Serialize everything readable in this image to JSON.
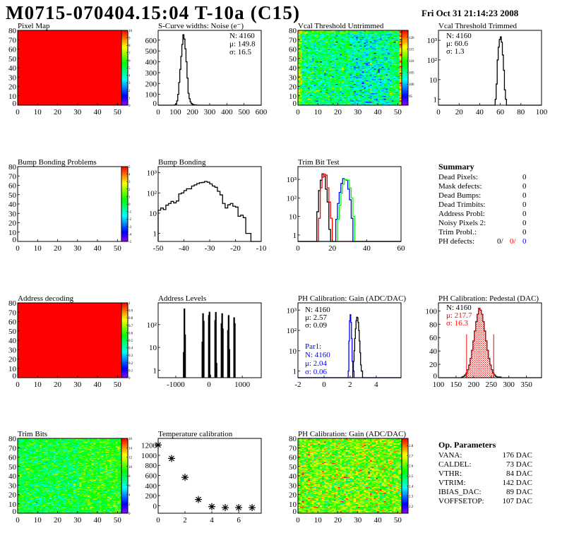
{
  "header": {
    "title": "M0715-070404.15:04 T-10a (C15)",
    "date": "Fri Oct 31 21:14:23 2008"
  },
  "summary": {
    "title": "Summary",
    "rows": [
      {
        "label": "Dead Pixels:",
        "value": "0"
      },
      {
        "label": "Mask defects:",
        "value": "0"
      },
      {
        "label": "Dead Bumps:",
        "value": "0"
      },
      {
        "label": "Dead Trimbits:",
        "value": "0"
      },
      {
        "label": "Address Probl:",
        "value": "0"
      },
      {
        "label": "Noisy Pixels 2:",
        "value": "0"
      },
      {
        "label": "Trim Probl.:",
        "value": "0"
      }
    ],
    "ph_defects": {
      "label": "PH defects:",
      "values": [
        {
          "text": "0/",
          "color": "#000000"
        },
        {
          "text": "0/",
          "color": "#ff0000"
        },
        {
          "text": "0",
          "color": "#0000ff"
        }
      ]
    }
  },
  "op_parameters": {
    "title": "Op. Parameters",
    "rows": [
      {
        "label": "VANA:",
        "value": "176 DAC"
      },
      {
        "label": "CALDEL:",
        "value": "73 DAC"
      },
      {
        "label": "VTHR:",
        "value": "84 DAC"
      },
      {
        "label": "VTRIM:",
        "value": "142 DAC"
      },
      {
        "label": "IBIAS_DAC:",
        "value": "89 DAC"
      },
      {
        "label": "VOFFSETOP:",
        "value": "107 DAC"
      }
    ]
  },
  "chart_data": [
    {
      "name": "pixel-map",
      "type": "heatmap",
      "title": "Pixel Map",
      "xlim": [
        0,
        52
      ],
      "ylim": [
        0,
        80
      ],
      "xticks": [
        0,
        10,
        20,
        30,
        40,
        50
      ],
      "yticks": [
        0,
        10,
        20,
        30,
        40,
        50,
        60,
        70,
        80
      ],
      "zlim": [
        0,
        10
      ],
      "colorbar_ticks": [
        0,
        1,
        2,
        3,
        4,
        5,
        6,
        7,
        8,
        9,
        10
      ],
      "uniform_value": 10
    },
    {
      "name": "s-curve-noise",
      "type": "histogram",
      "title": "S-Curve widths: Noise (e⁻)",
      "xlim": [
        0,
        600
      ],
      "ylim": [
        0,
        690
      ],
      "ylog": false,
      "xticks": [
        0,
        100,
        200,
        300,
        400,
        500,
        600
      ],
      "yticks": [
        0,
        100,
        200,
        300,
        400,
        500,
        600
      ],
      "stats": [
        {
          "text": "N: 4160",
          "color": "#000000"
        },
        {
          "text": "μ: 149.8",
          "color": "#000000"
        },
        {
          "text": "σ: 16.5",
          "color": "#000000"
        }
      ],
      "series": [
        {
          "color": "#000000",
          "bin_start": 90,
          "bin_width": 6,
          "values": [
            1,
            2,
            10,
            40,
            100,
            210,
            330,
            450,
            560,
            650,
            610,
            520,
            400,
            250,
            110,
            60,
            30,
            15,
            8,
            5,
            3,
            2,
            1,
            1
          ]
        }
      ]
    },
    {
      "name": "vcal-threshold-untrimmed",
      "type": "heatmap",
      "title": "Vcal Threshold Untrimmed",
      "xlim": [
        0,
        52
      ],
      "ylim": [
        0,
        80
      ],
      "xticks": [
        0,
        10,
        20,
        30,
        40,
        50
      ],
      "yticks": [
        0,
        10,
        20,
        30,
        40,
        50,
        60,
        70,
        80
      ],
      "zlim": [
        91,
        123
      ],
      "colorbar_ticks": [
        95,
        100,
        105,
        110,
        115,
        120
      ]
    },
    {
      "name": "vcal-threshold-trimmed",
      "type": "histogram",
      "title": "Vcal Threshold Trimmed",
      "xlim": [
        0,
        100
      ],
      "ylim": [
        0.5,
        3200
      ],
      "ylog": true,
      "xticks": [
        0,
        20,
        40,
        60,
        80,
        100
      ],
      "yticks": [
        1,
        10,
        100,
        1000
      ],
      "ytick_labels": [
        "1",
        "10",
        "10²",
        "10³"
      ],
      "stats": [
        {
          "text": "N: 4160",
          "color": "#000000"
        },
        {
          "text": "μ: 60.6",
          "color": "#000000"
        },
        {
          "text": "σ:  1.3",
          "color": "#000000"
        }
      ],
      "series": [
        {
          "color": "#000000",
          "bin_start": 55,
          "bin_width": 1,
          "values": [
            1,
            6,
            100,
            450,
            1100,
            1500,
            800,
            180,
            30,
            3,
            1
          ]
        }
      ]
    },
    {
      "name": "bump-bonding-problems",
      "type": "heatmap",
      "title": "Bump Bonding Problems",
      "xlim": [
        0,
        52
      ],
      "ylim": [
        0,
        80
      ],
      "xticks": [
        0,
        10,
        20,
        30,
        40,
        50
      ],
      "yticks": [
        0,
        10,
        20,
        30,
        40,
        50,
        60,
        70,
        80
      ],
      "zlim": [
        -5,
        5
      ],
      "colorbar_ticks": [
        -5,
        -4,
        -3,
        -2,
        -1,
        0,
        1,
        2,
        3,
        4,
        5
      ]
    },
    {
      "name": "bump-bonding",
      "type": "histogram",
      "title": "Bump Bonding",
      "xlim": [
        -50,
        -10
      ],
      "ylim": [
        0.4,
        2000
      ],
      "ylog": true,
      "xticks": [
        -50,
        -40,
        -30,
        -20,
        -10
      ],
      "yticks": [
        1,
        10,
        100,
        1000
      ],
      "ytick_labels": [
        "1",
        "10",
        "10²",
        "10³"
      ],
      "series": [
        {
          "color": "#000000",
          "bin_start": -50,
          "bin_width": 1,
          "values": [
            14,
            18,
            15,
            25,
            30,
            38,
            32,
            40,
            90,
            100,
            130,
            160,
            160,
            220,
            250,
            290,
            320,
            330,
            370,
            340,
            280,
            220,
            190,
            120,
            80,
            30,
            18,
            26,
            30,
            22,
            20,
            7,
            8,
            6,
            1,
            1
          ]
        }
      ]
    },
    {
      "name": "trim-bit-test",
      "type": "histogram",
      "title": "Trim Bit Test",
      "xlim": [
        0,
        60
      ],
      "ylim": [
        0.45,
        4900
      ],
      "ylog": true,
      "xticks": [
        0,
        20,
        40,
        60
      ],
      "yticks": [
        1,
        10,
        100,
        1000
      ],
      "ytick_labels": [
        "1",
        "10",
        "10²",
        "10³"
      ],
      "series": [
        {
          "color": "#000000",
          "bin_start": 11,
          "bin_width": 1,
          "values": [
            18,
            250,
            900,
            2000,
            1500,
            300,
            60,
            2
          ]
        },
        {
          "color": "#ff0000",
          "bin_start": 12,
          "bin_width": 1,
          "values": [
            8,
            350,
            1300,
            1900,
            1700,
            350,
            60,
            8
          ]
        },
        {
          "color": "#0000ff",
          "bin_start": 22,
          "bin_width": 1,
          "values": [
            7,
            50,
            200,
            600,
            1100,
            1000,
            900,
            300,
            80,
            8
          ]
        },
        {
          "color": "#00ff00",
          "bin_start": 23,
          "bin_width": 1,
          "values": [
            7,
            40,
            180,
            550,
            1000,
            950,
            900,
            350,
            100,
            10
          ]
        }
      ]
    },
    {
      "name": "address-decoding",
      "type": "heatmap",
      "title": "Address decoding",
      "xlim": [
        0,
        52
      ],
      "ylim": [
        0,
        80
      ],
      "xticks": [
        0,
        10,
        20,
        30,
        40,
        50
      ],
      "yticks": [
        0,
        10,
        20,
        30,
        40,
        50,
        60,
        70,
        80
      ],
      "zlim": [
        0,
        1
      ],
      "colorbar_ticks": [
        0,
        0.1,
        0.2,
        0.3,
        0.4,
        0.5,
        0.6,
        0.7,
        0.8,
        0.9,
        1
      ],
      "uniform_value": 1
    },
    {
      "name": "address-levels",
      "type": "histogram",
      "title": "Address Levels",
      "xlim": [
        -1530,
        1570
      ],
      "ylim": [
        0.47,
        900
      ],
      "ylog": true,
      "xticks": [
        -1000,
        0,
        1000
      ],
      "yticks": [
        1,
        10,
        100
      ],
      "ytick_labels": [
        "1",
        "10",
        "10²"
      ],
      "series": [
        {
          "color": "#000000",
          "bin_width": 20,
          "bins": [
            [
              -770,
              6
            ],
            [
              -750,
              480
            ],
            [
              -730,
              35
            ],
            [
              -210,
              17
            ],
            [
              -190,
              300
            ],
            [
              -170,
              140
            ],
            [
              -15,
              250
            ],
            [
              5,
              350
            ],
            [
              25,
              0.6
            ],
            [
              175,
              150
            ],
            [
              195,
              340
            ],
            [
              215,
              2
            ],
            [
              365,
              110
            ],
            [
              385,
              300
            ],
            [
              405,
              65
            ],
            [
              560,
              55
            ],
            [
              580,
              250
            ],
            [
              600,
              8
            ],
            [
              745,
              200
            ],
            [
              765,
              110
            ]
          ]
        }
      ]
    },
    {
      "name": "ph-calibration-gain",
      "type": "histogram",
      "title": "PH Calibration: Gain (ADC/DAC)",
      "xlim": [
        -2,
        5.9
      ],
      "ylim": [
        0.47,
        2280
      ],
      "ylog": true,
      "xticks": [
        -2,
        0,
        2,
        4
      ],
      "yticks": [
        1,
        10,
        100,
        1000
      ],
      "ytick_labels": [
        "1",
        "10",
        "10²",
        "10³"
      ],
      "stats": [
        {
          "text": "N: 4160",
          "color": "#000000"
        },
        {
          "text": "μ: 2.57",
          "color": "#000000"
        },
        {
          "text": "σ: 0.09",
          "color": "#000000"
        }
      ],
      "stats2": [
        {
          "text": "Par1:",
          "color": "#0000ff"
        },
        {
          "text": "N: 4160",
          "color": "#0000ff"
        },
        {
          "text": "μ: 2.04",
          "color": "#0000ff"
        },
        {
          "text": "σ: 0.06",
          "color": "#0000ff"
        }
      ],
      "series": [
        {
          "color": "#000000",
          "bin_start": 2.2,
          "bin_width": 0.05,
          "values": [
            1,
            3,
            10,
            40,
            120,
            300,
            450,
            420,
            250,
            100,
            30,
            8,
            2,
            1,
            1
          ]
        },
        {
          "color": "#0000ff",
          "bin_start": 1.85,
          "bin_width": 0.05,
          "values": [
            1,
            30,
            300,
            600,
            250,
            40,
            3,
            1,
            1
          ]
        }
      ]
    },
    {
      "name": "ph-calibration-pedestal",
      "type": "histogram",
      "title": "PH Calibration: Pedestal (DAC)",
      "xlim": [
        100,
        393
      ],
      "ylim": [
        0,
        112
      ],
      "ylog": false,
      "xticks": [
        100,
        150,
        200,
        250,
        300,
        350
      ],
      "yticks": [
        0,
        20,
        40,
        60,
        80,
        100
      ],
      "stats": [
        {
          "text": "N: 4160",
          "color": "#000000"
        },
        {
          "text": "μ: 217.7",
          "color": "#ff0000"
        },
        {
          "text": "σ: 16.3",
          "color": "#ff0000"
        }
      ],
      "cut_lines": {
        "x": [
          180,
          257
        ],
        "height": 65,
        "color": "#ff0000"
      },
      "series": [
        {
          "color": "#000000",
          "bin_start": 166,
          "bin_width": 4,
          "values": [
            1,
            2,
            4,
            7,
            12,
            19,
            29,
            41,
            55,
            70,
            84,
            95,
            104,
            101,
            95,
            84,
            70,
            55,
            41,
            29,
            19,
            12,
            7,
            4,
            2,
            1,
            1,
            1
          ]
        },
        {
          "color": "#ff0000",
          "fill": "hatch",
          "bin_start": 178,
          "bin_width": 4,
          "values": [
            7,
            12,
            19,
            29,
            41,
            55,
            70,
            84,
            95,
            104,
            101,
            95,
            84,
            70,
            55,
            41,
            29,
            19,
            12,
            7
          ]
        }
      ]
    },
    {
      "name": "trim-bits",
      "type": "heatmap",
      "title": "Trim Bits",
      "xlim": [
        0,
        52
      ],
      "ylim": [
        0,
        80
      ],
      "xticks": [
        0,
        10,
        20,
        30,
        40,
        50
      ],
      "yticks": [
        0,
        10,
        20,
        30,
        40,
        50,
        60,
        70,
        80
      ],
      "zlim": [
        0,
        16
      ],
      "colorbar_ticks": [
        0,
        2,
        4,
        6,
        8,
        10,
        12,
        14,
        16
      ]
    },
    {
      "name": "temperature-calibration",
      "type": "scatter",
      "title": "Temperature calibration",
      "xlim": [
        0,
        7.68
      ],
      "ylim": [
        -150,
        1336
      ],
      "ylog": false,
      "xticks": [
        0,
        2,
        4,
        6
      ],
      "yticks": [
        0,
        200,
        400,
        600,
        800,
        1000,
        1200
      ],
      "marker": "star",
      "x": [
        0,
        1,
        2,
        3,
        4,
        5,
        6,
        7
      ],
      "y": [
        1205,
        938,
        563,
        122,
        -19,
        -38,
        -38,
        -38
      ]
    },
    {
      "name": "ph-calibration-gain-map",
      "type": "heatmap",
      "title": "PH Calibration: Gain (ADC/DAC)",
      "xlim": [
        0,
        52
      ],
      "ylim": [
        0,
        80
      ],
      "xticks": [
        0,
        10,
        20,
        30,
        40,
        50
      ],
      "yticks": [
        0,
        10,
        20,
        30,
        40,
        50,
        60,
        70,
        80
      ],
      "zlim": [
        2.13,
        2.87
      ],
      "colorbar_ticks": [
        2.2,
        2.3,
        2.4,
        2.5,
        2.6,
        2.7,
        2.8
      ]
    }
  ]
}
